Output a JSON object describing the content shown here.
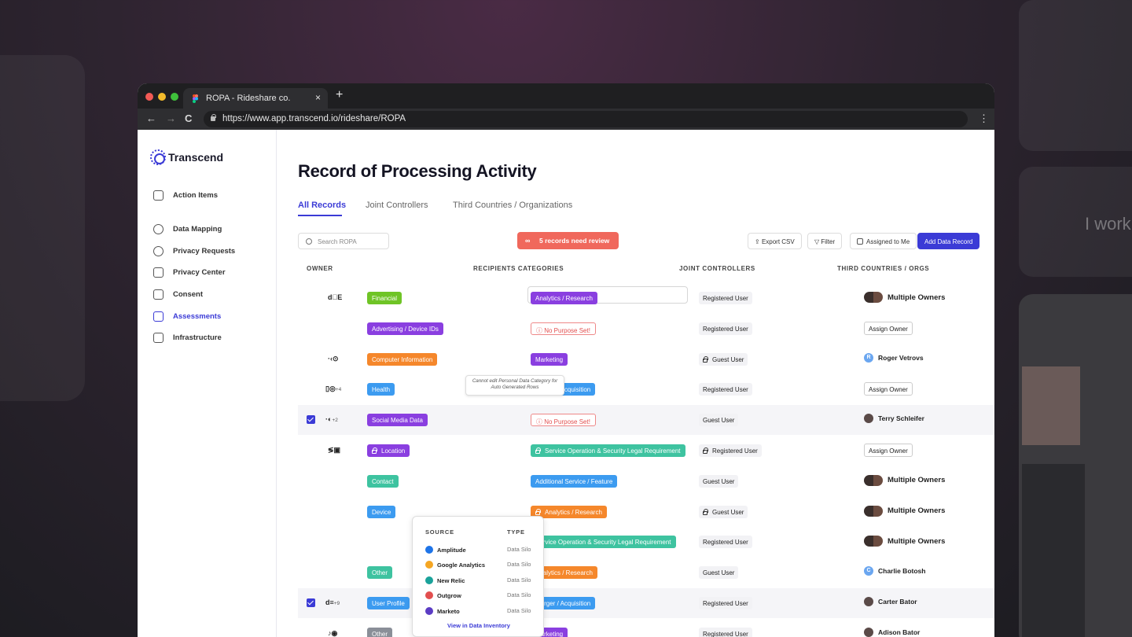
{
  "background": {
    "side_text": "I work"
  },
  "browser": {
    "tab_title": "ROPA - Rideshare co.",
    "close": "×",
    "new_tab": "+",
    "url": "https://www.app.transcend.io/rideshare/ROPA",
    "back": "←",
    "forward": "→",
    "reload": "C",
    "menu": "⋮"
  },
  "sidebar": {
    "brand": "Transcend",
    "items": [
      {
        "label": "Action Items",
        "icon": "bolt-icon"
      },
      {
        "label": "Data Mapping",
        "icon": "globe-icon"
      },
      {
        "label": "Privacy Requests",
        "icon": "chat-check-icon"
      },
      {
        "label": "Privacy Center",
        "icon": "browser-icon"
      },
      {
        "label": "Consent",
        "icon": "sliders-icon"
      },
      {
        "label": "Assessments",
        "icon": "document-search-icon",
        "active": true
      },
      {
        "label": "Infrastructure",
        "icon": "cube-icon"
      }
    ]
  },
  "main": {
    "title": "Record of Processing Activity",
    "tabs": [
      "All Records",
      "Joint Controllers",
      "Third Countries / Organizations"
    ],
    "search_placeholder": "Search ROPA",
    "alert": "5 records need review",
    "alert_icon": "∞",
    "buttons": {
      "export": "Export CSV",
      "filter": "Filter",
      "assigned": "Assigned to Me",
      "add": "Add Data Record"
    },
    "columns": [
      "OWNER",
      "RECIPIENTS CATEGORIES",
      "JOINT CONTROLLERS",
      "THIRD COUNTRIES / ORGS"
    ],
    "tooltip": "Cannot edit Personal Data Category for Auto Generated Rows",
    "rows": [
      {
        "icons": "d⃝E ",
        "extra": "",
        "category": "Financial",
        "category_color": "#6fc426",
        "recipient": "Analytics / Research",
        "recipient_color": "#8a3fe0",
        "joint": "Registered User",
        "owner": "Multiple Owners",
        "owner_type": "pair",
        "selected": false
      },
      {
        "icons": "",
        "extra": "",
        "category": "Advertising / Device IDs",
        "category_color": "#8a3fe0",
        "recipient": "No Purpose Set!",
        "recipient_color": "outline",
        "joint": "Registered User",
        "owner": "Assign Owner",
        "owner_type": "assign",
        "selected": false
      },
      {
        "icons": "·‹⊙",
        "extra": "",
        "category": "Computer Information",
        "category_color": "#f5872b",
        "recipient": "Marketing",
        "recipient_color": "#8a3fe0",
        "joint": "Guest User",
        "joint_locked": true,
        "owner": "Roger Vetrovs",
        "owner_type": "letter",
        "owner_letter": "R",
        "selected": false
      },
      {
        "icons": "▯◎",
        "extra": "+4",
        "category": "Health",
        "category_color": "#3c9bf0",
        "recipient": "Merger / Acquisition",
        "recipient_color": "#3c9bf0",
        "joint": "Registered User",
        "owner": "Assign Owner",
        "owner_type": "assign",
        "selected": false
      },
      {
        "icons": "·◐",
        "extra": "+2",
        "category": "Social Media Data",
        "category_color": "#8a3fe0",
        "recipient": "No Purpose Set!",
        "recipient_color": "outline",
        "joint": "Guest User",
        "owner": "Terry Schleifer",
        "owner_type": "single",
        "selected": true
      },
      {
        "icons": "≶▣",
        "extra": "",
        "category": "Location",
        "category_color": "#8a3fe0",
        "category_locked": true,
        "recipient": "Service Operation & Security Legal Requirement",
        "recipient_color": "#3ec3a0",
        "recipient_locked": true,
        "joint": "Registered User",
        "joint_locked": true,
        "owner": "Assign Owner",
        "owner_type": "assign",
        "selected": false
      },
      {
        "icons": "",
        "extra": "",
        "category": "Contact",
        "category_color": "#3ec3a0",
        "recipient": "Additional Service / Feature",
        "recipient_color": "#3c9bf0",
        "joint": "Guest User",
        "owner": "Multiple Owners",
        "owner_type": "pair",
        "selected": false
      },
      {
        "icons": "",
        "extra": "",
        "category": "Device",
        "category_color": "#3c9bf0",
        "recipient": "Analytics / Research",
        "recipient_color": "#f5872b",
        "recipient_locked": true,
        "joint": "Guest User",
        "joint_locked": true,
        "owner": "Multiple Owners",
        "owner_type": "pair",
        "selected": false
      },
      {
        "icons": "",
        "extra": "",
        "category": "",
        "category_color": "",
        "recipient": "Service Operation & Security Legal Requirement",
        "recipient_color": "#3ec3a0",
        "joint": "Registered User",
        "owner": "Multiple Owners",
        "owner_type": "pair",
        "selected": false
      },
      {
        "icons": "",
        "extra": "",
        "category": "Other",
        "category_color": "#3ec3a0",
        "recipient": "Analytics / Research",
        "recipient_color": "#f5872b",
        "joint": "Guest User",
        "owner": "Charlie Botosh",
        "owner_type": "letter",
        "owner_letter": "C",
        "selected": false
      },
      {
        "icons": "d≡",
        "extra": "+9",
        "category": "User Profile",
        "category_color": "#3c9bf0",
        "recipient": "Merger / Acquisition",
        "recipient_color": "#3c9bf0",
        "joint": "Registered User",
        "owner": "Carter Bator",
        "owner_type": "single",
        "selected": true
      },
      {
        "icons": "♪◉",
        "extra": "",
        "category": "Other",
        "category_color": "#8a8f98",
        "recipient": "Marketing",
        "recipient_color": "#8a3fe0",
        "joint": "Registered User",
        "owner": "Adison Bator",
        "owner_type": "single",
        "selected": false
      }
    ],
    "popover": {
      "source_header": "SOURCE",
      "type_header": "TYPE",
      "items": [
        {
          "name": "Amplitude",
          "type": "Data Silo",
          "color": "#1e74e8"
        },
        {
          "name": "Google Analytics",
          "type": "Data Silo",
          "color": "#f5a623"
        },
        {
          "name": "New Relic",
          "type": "Data Silo",
          "color": "#1aa29a"
        },
        {
          "name": "Outgrow",
          "type": "Data Silo",
          "color": "#e24f4f"
        },
        {
          "name": "Marketo",
          "type": "Data Silo",
          "color": "#5b3cc4"
        }
      ],
      "link": "View in Data Inventory"
    }
  }
}
